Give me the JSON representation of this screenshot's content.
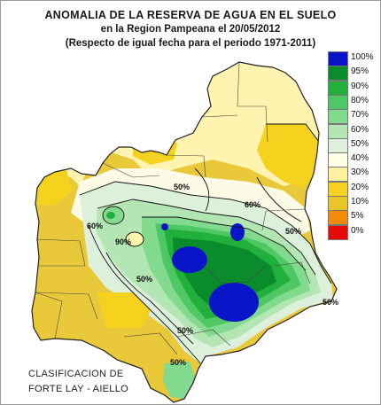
{
  "title": {
    "line1": "ANOMALIA DE LA RESERVA DE AGUA EN EL SUELO",
    "line2": "en la Region Pampeana el  20/05/2012",
    "line3": "(Respecto de igual fecha para el periodo 1971-2011)"
  },
  "credits": {
    "line1": "CLASIFICACION DE",
    "line2": "FORTE LAY - AIELLO"
  },
  "legend": [
    {
      "label": "100%",
      "color": "#0a14c8"
    },
    {
      "label": "95%",
      "color": "#0a8c2d"
    },
    {
      "label": "90%",
      "color": "#22b03c"
    },
    {
      "label": "80%",
      "color": "#4ec864"
    },
    {
      "label": "70%",
      "color": "#82da8e"
    },
    {
      "label": "60%",
      "color": "#b4e6b4"
    },
    {
      "label": "50%",
      "color": "#dcf0dc"
    },
    {
      "label": "40%",
      "color": "#ffffe6"
    },
    {
      "label": "30%",
      "color": "#fff0a0"
    },
    {
      "label": "20%",
      "color": "#f7d220"
    },
    {
      "label": "10%",
      "color": "#e8c62a"
    },
    {
      "label": "5%",
      "color": "#f08c0a"
    },
    {
      "label": "0%",
      "color": "#e60a0a"
    }
  ],
  "contour_labels": {
    "a": "60%",
    "b": "50%",
    "c": "50%",
    "d": "50%",
    "e": "50%",
    "f": "50%",
    "g": "50%",
    "h": "60%",
    "i": "90%"
  }
}
